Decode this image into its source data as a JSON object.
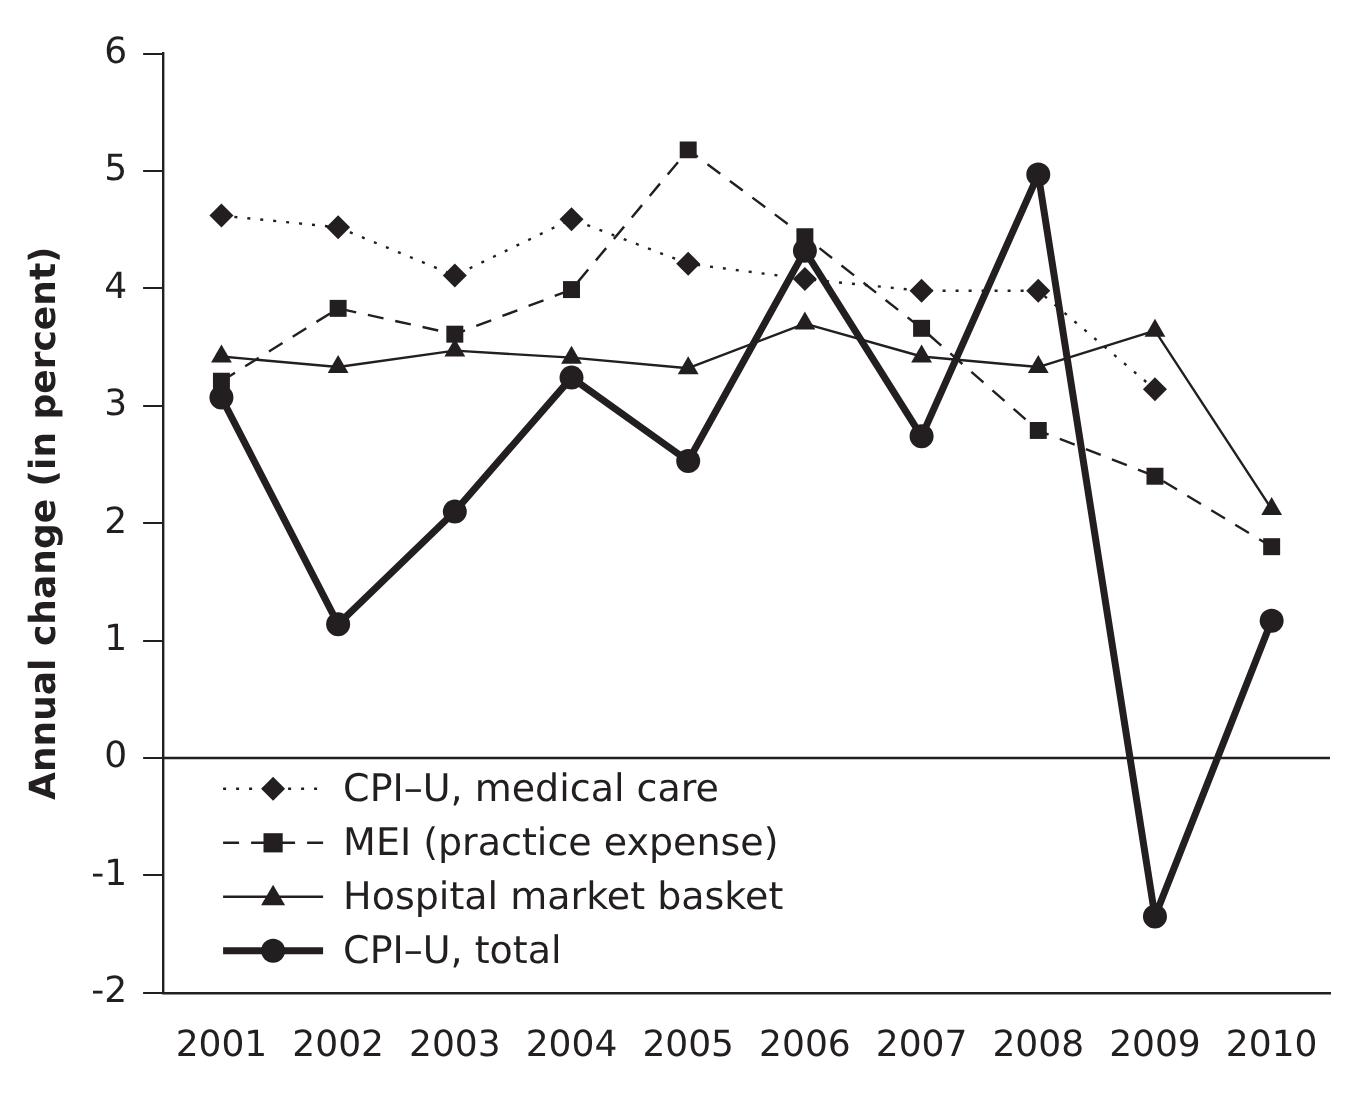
{
  "chart_data": {
    "type": "line",
    "ylabel": "Annual change (in percent)",
    "categories": [
      "2001",
      "2002",
      "2003",
      "2004",
      "2005",
      "2006",
      "2007",
      "2008",
      "2009",
      "2010"
    ],
    "series": [
      {
        "name": "CPI–U, medical care",
        "color": "#231f20",
        "marker": "diamond",
        "line_style": "dotted",
        "values": [
          4.62,
          4.52,
          4.11,
          4.59,
          4.21,
          4.08,
          3.98,
          3.98,
          3.14,
          null
        ]
      },
      {
        "name": "MEI (practice expense)",
        "color": "#231f20",
        "marker": "square",
        "line_style": "dashed",
        "values": [
          3.21,
          3.83,
          3.61,
          3.99,
          5.18,
          4.44,
          3.66,
          2.79,
          2.4,
          1.8
        ]
      },
      {
        "name": "Hospital market basket",
        "color": "#231f20",
        "marker": "triangle",
        "line_style": "solid",
        "values": [
          3.42,
          3.33,
          3.47,
          3.41,
          3.32,
          3.7,
          3.42,
          3.33,
          3.64,
          2.12
        ]
      },
      {
        "name": "CPI–U, total",
        "color": "#231f20",
        "marker": "circle",
        "line_style": "solid",
        "values": [
          3.07,
          1.14,
          2.1,
          3.24,
          2.53,
          4.32,
          2.74,
          4.97,
          -1.35,
          1.17
        ]
      }
    ],
    "ylim": [
      -2,
      6
    ],
    "yticks": [
      -2,
      -1,
      0,
      1,
      2,
      3,
      4,
      5,
      6
    ],
    "ref_lines": [
      {
        "axis": "y",
        "value": 0,
        "color": "#231f20"
      }
    ],
    "grid": false,
    "legend": "bottom left"
  }
}
